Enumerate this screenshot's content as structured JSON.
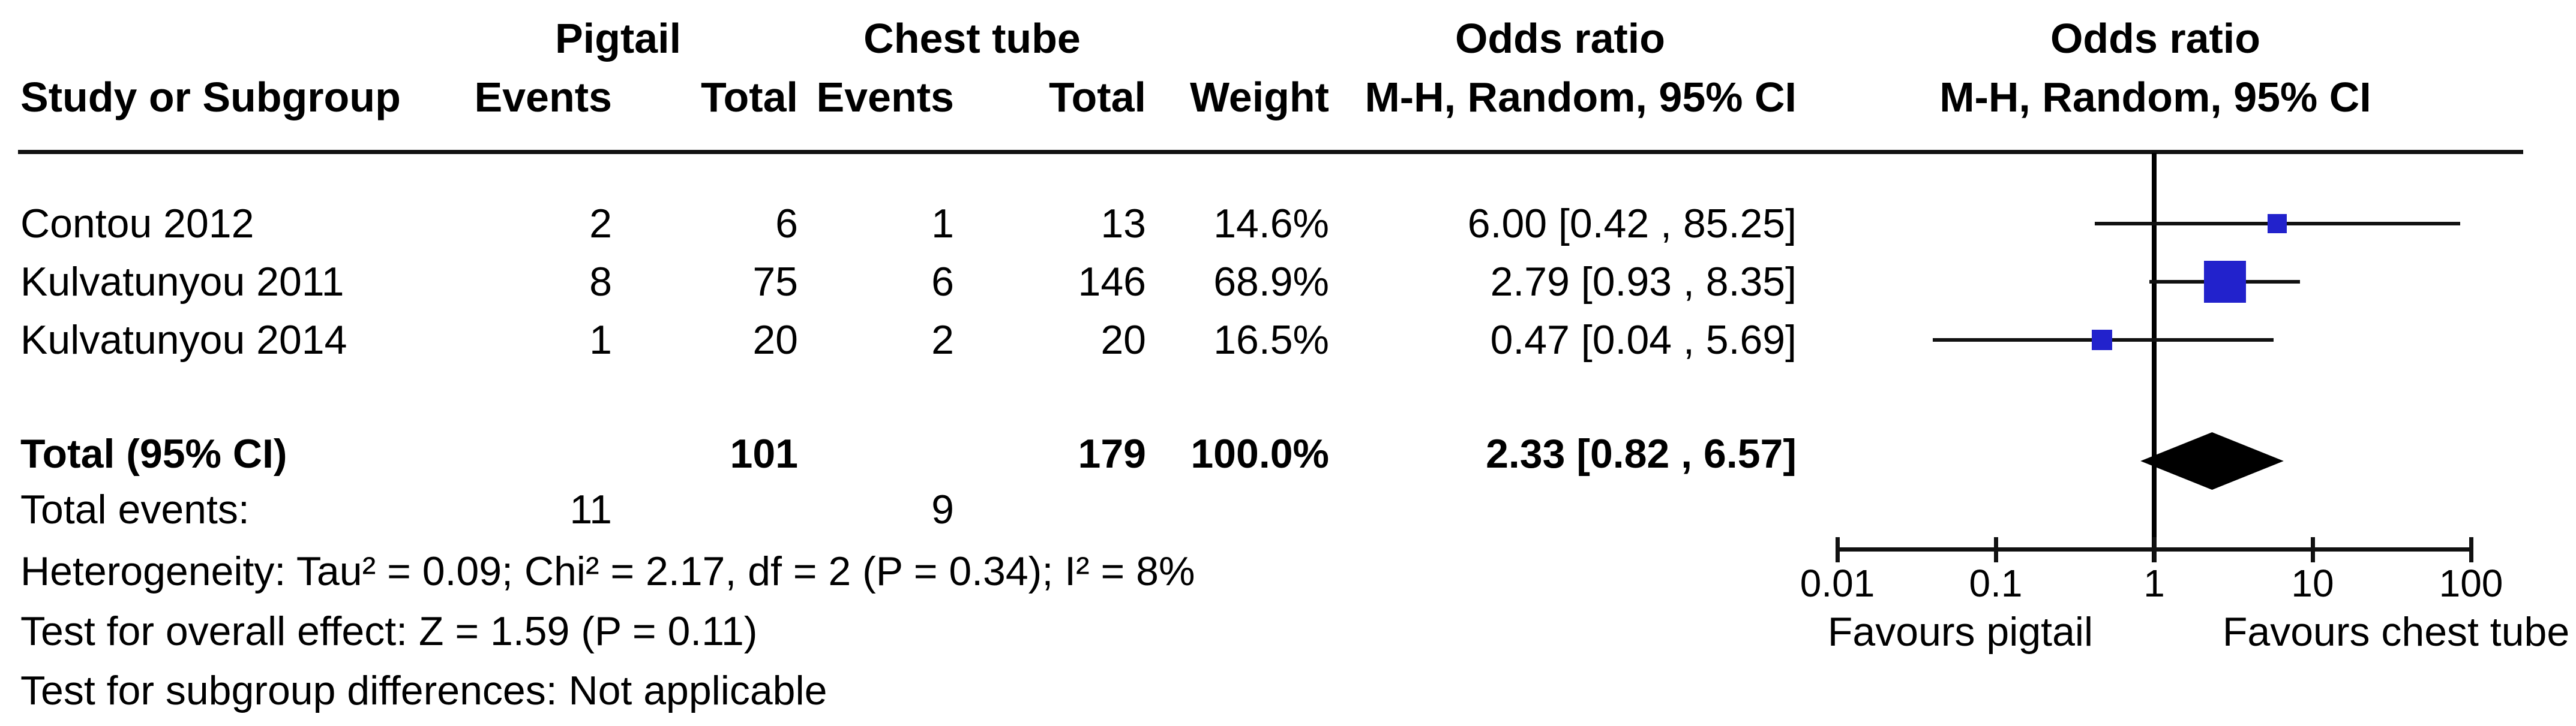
{
  "header": {
    "group_pigtail": "Pigtail",
    "group_chest_tube": "Chest tube",
    "odds_ratio_left": "Odds ratio",
    "odds_ratio_right": "Odds ratio",
    "study_or_subgroup": "Study or Subgroup",
    "events_pigtail": "Events",
    "total_pigtail": "Total",
    "events_chest": "Events",
    "total_chest": "Total",
    "weight": "Weight",
    "mh_random_left": "M-H, Random, 95% CI",
    "mh_random_right": "M-H, Random, 95% CI"
  },
  "chart_data": {
    "type": "forest",
    "effect_label": "Odds ratio",
    "method_label": "M-H, Random, 95% CI",
    "x_scale": "log",
    "x_ticks": [
      0.01,
      0.1,
      1,
      10,
      100
    ],
    "x_tick_labels": [
      "0.01",
      "0.1",
      "1",
      "10",
      "100"
    ],
    "null_value": 1,
    "favours_left": "Favours pigtail",
    "favours_right": "Favours chest tube",
    "marker_color": "#2222CC",
    "studies": [
      {
        "name": "Contou 2012",
        "pigtail_events": "2",
        "pigtail_total": "6",
        "chest_events": "1",
        "chest_total": "13",
        "weight": "14.6%",
        "weight_value": 14.6,
        "or": 6.0,
        "ci_low": 0.42,
        "ci_high": 85.25,
        "or_text": "6.00 [0.42 , 85.25]"
      },
      {
        "name": "Kulvatunyou 2011",
        "pigtail_events": "8",
        "pigtail_total": "75",
        "chest_events": "6",
        "chest_total": "146",
        "weight": "68.9%",
        "weight_value": 68.9,
        "or": 2.79,
        "ci_low": 0.93,
        "ci_high": 8.35,
        "or_text": "2.79 [0.93 , 8.35]"
      },
      {
        "name": "Kulvatunyou 2014",
        "pigtail_events": "1",
        "pigtail_total": "20",
        "chest_events": "2",
        "chest_total": "20",
        "weight": "16.5%",
        "weight_value": 16.5,
        "or": 0.47,
        "ci_low": 0.04,
        "ci_high": 5.69,
        "or_text": "0.47 [0.04 , 5.69]"
      }
    ],
    "total": {
      "label": "Total (95% CI)",
      "pigtail_total": "101",
      "chest_total": "179",
      "weight": "100.0%",
      "or": 2.33,
      "ci_low": 0.82,
      "ci_high": 6.57,
      "or_text": "2.33 [0.82 , 6.57]"
    },
    "total_events": {
      "label": "Total events:",
      "pigtail_events": "11",
      "chest_events": "9"
    },
    "footnotes": [
      "Heterogeneity: Tau² = 0.09; Chi² = 2.17, df = 2 (P = 0.34); I² = 8%",
      "Test for overall effect: Z = 1.59 (P = 0.11)",
      "Test for subgroup differences: Not applicable"
    ]
  }
}
